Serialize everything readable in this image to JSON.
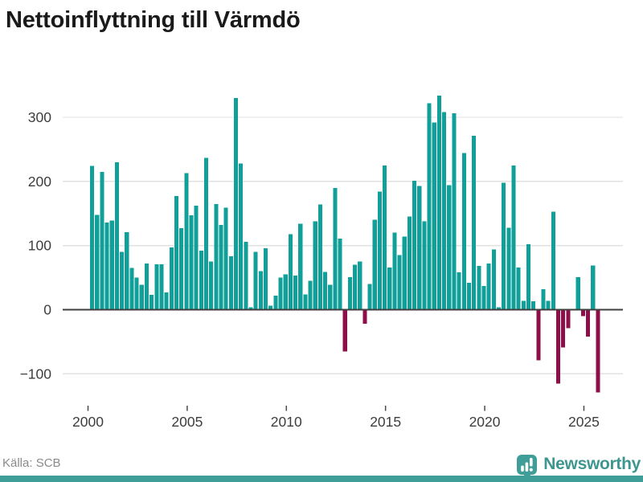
{
  "header": {
    "title": "Nettoinflyttning till Värmdö"
  },
  "footer": {
    "source_label": "Källa: SCB",
    "brand_name": "Newsworthy"
  },
  "colors": {
    "positive_bar": "#11a099",
    "negative_bar": "#8e0e49",
    "gridline": "#e2e2e2",
    "zero_line": "#3f3f3f",
    "axis_text": "#3d3d3d",
    "tick_mark": "#4a4a4a",
    "title_text": "#1a1a1a",
    "source_text": "#8a8a8a",
    "brand_teal": "#3f9e97"
  },
  "chart_data": {
    "type": "bar",
    "title": "Nettoinflyttning till Värmdö",
    "xlabel": "",
    "ylabel": "",
    "frequency": "quarterly",
    "x_start": "2000-Q1",
    "x_end": "2025-Q3",
    "x_tick_labels": [
      "2000",
      "2005",
      "2010",
      "2015",
      "2020",
      "2025"
    ],
    "y_ticks": [
      300,
      200,
      100,
      0,
      -100
    ],
    "y_tick_labels": [
      "300",
      "200",
      "100",
      "0",
      "−100"
    ],
    "ylim": [
      -150,
      344
    ],
    "grid": "horizontal",
    "legend": "none",
    "series": [
      {
        "name": "Nettoinflyttning",
        "values": [
          224,
          148,
          215,
          136,
          139,
          230,
          90,
          121,
          65,
          50,
          39,
          72,
          23,
          71,
          71,
          27,
          97,
          177,
          127,
          213,
          147,
          162,
          92,
          237,
          75,
          165,
          132,
          159,
          83,
          330,
          228,
          106,
          4,
          90,
          60,
          96,
          6,
          22,
          50,
          55,
          118,
          53,
          134,
          24,
          45,
          138,
          164,
          59,
          39,
          190,
          111,
          -65,
          51,
          70,
          75,
          -22,
          40,
          140,
          184,
          225,
          66,
          120,
          85,
          114,
          145,
          201,
          193,
          138,
          322,
          292,
          334,
          308,
          194,
          306,
          58,
          244,
          42,
          271,
          68,
          37,
          72,
          94,
          4,
          198,
          128,
          225,
          66,
          14,
          102,
          13,
          -79,
          32,
          14,
          153,
          -115,
          -59,
          -29,
          0,
          51,
          -10,
          -42,
          69,
          -129
        ]
      }
    ]
  }
}
